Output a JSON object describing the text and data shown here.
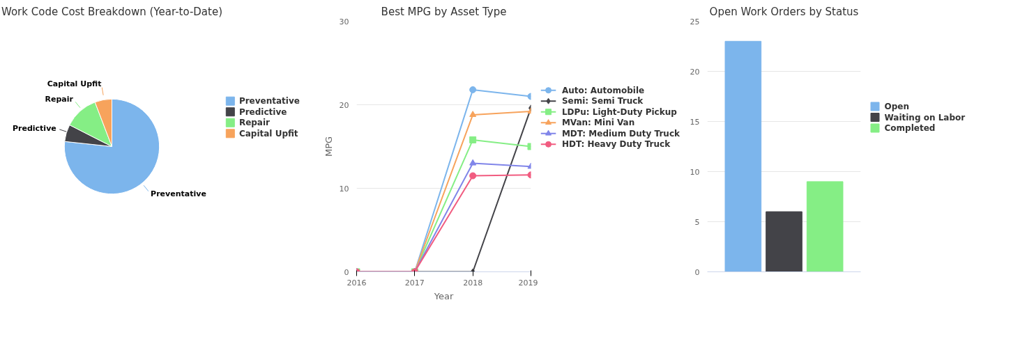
{
  "chart_data": [
    {
      "type": "pie",
      "title": "Work Code Cost Breakdown (Year-to-Date)",
      "categories": [
        "Preventative",
        "Predictive",
        "Repair",
        "Capital Upfit"
      ],
      "values": [
        76.7,
        5.8,
        11.7,
        5.8
      ],
      "colors": [
        "#7cb5ec",
        "#434348",
        "#85ee85",
        "#f7a35c"
      ],
      "legend": "right"
    },
    {
      "type": "line",
      "title": "Best MPG by Asset Type",
      "xlabel": "Year",
      "ylabel": "MPG",
      "x": [
        2016,
        2017,
        2018,
        2019
      ],
      "xlim": [
        2016,
        2019
      ],
      "xticks": [
        2016,
        2017,
        2018,
        2019
      ],
      "ylim": [
        0,
        30
      ],
      "yticks": [
        0,
        10,
        20,
        30
      ],
      "grid": "y",
      "legend": "right",
      "series": [
        {
          "name": "Auto: Automobile",
          "color": "#7cb5ec",
          "marker": "circle",
          "values": [
            0,
            0,
            21.8,
            21.0
          ]
        },
        {
          "name": "Semi: Semi Truck",
          "color": "#434348",
          "marker": "diamond",
          "values": [
            0,
            0,
            0,
            19.6
          ]
        },
        {
          "name": "LDPu: Light-Duty Pickup",
          "color": "#85ee85",
          "marker": "square",
          "values": [
            0,
            0,
            15.8,
            15.0
          ]
        },
        {
          "name": "MVan: Mini Van",
          "color": "#f7a35c",
          "marker": "triangle",
          "values": [
            0,
            0,
            18.8,
            19.2
          ]
        },
        {
          "name": "MDT: Medium Duty Truck",
          "color": "#8085e9",
          "marker": "triangle",
          "values": [
            0,
            0,
            13.0,
            12.6
          ]
        },
        {
          "name": "HDT: Heavy Duty Truck",
          "color": "#f15c80",
          "marker": "circle",
          "values": [
            0,
            0,
            11.5,
            11.6
          ]
        }
      ]
    },
    {
      "type": "bar",
      "title": "Open Work Orders by Status",
      "categories": [
        null
      ],
      "ylim": [
        0,
        25
      ],
      "yticks": [
        0,
        5,
        10,
        15,
        20,
        25
      ],
      "grid": "y",
      "legend": "right",
      "tick_labels": "y",
      "series": [
        {
          "name": "Open",
          "color": "#7cb5ec",
          "values": [
            23
          ]
        },
        {
          "name": "Waiting on Labor",
          "color": "#434348",
          "values": [
            6
          ]
        },
        {
          "name": "Completed",
          "color": "#85ee85",
          "values": [
            9
          ]
        }
      ]
    }
  ]
}
